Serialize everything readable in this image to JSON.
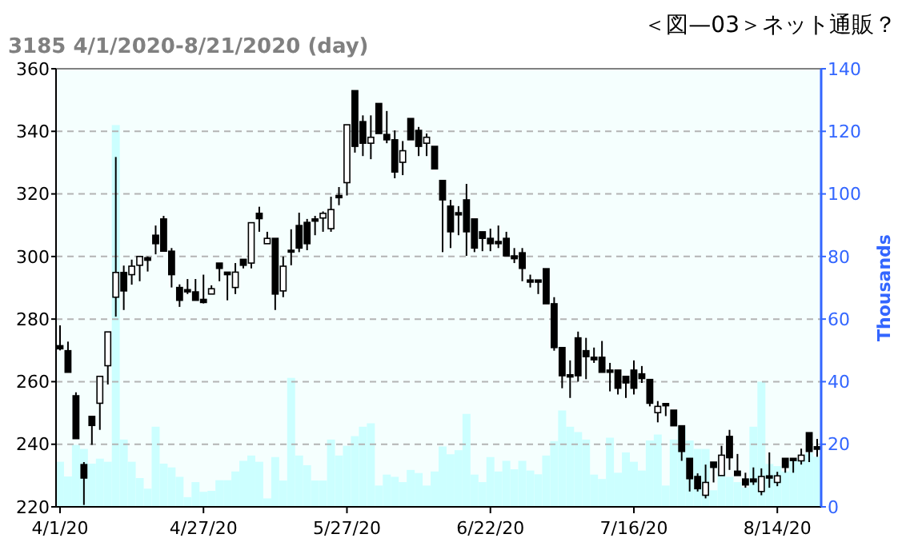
{
  "chart_data": {
    "type": "candlestick",
    "title": "3185 4/1/2020-8/21/2020 (day)",
    "annotations": [
      "＜図—03＞ネット通販？"
    ],
    "y2label": "Thousands",
    "categories": [
      "4/1/20",
      null,
      null,
      null,
      null,
      null,
      null,
      null,
      null,
      null,
      null,
      null,
      null,
      null,
      null,
      null,
      null,
      null,
      "4/27/20",
      null,
      null,
      null,
      null,
      null,
      null,
      null,
      null,
      null,
      null,
      null,
      null,
      null,
      null,
      null,
      null,
      null,
      "5/27/20",
      null,
      null,
      null,
      null,
      null,
      null,
      null,
      null,
      null,
      null,
      null,
      null,
      null,
      null,
      null,
      null,
      null,
      "6/22/20",
      null,
      null,
      null,
      null,
      null,
      null,
      null,
      null,
      null,
      null,
      null,
      null,
      null,
      null,
      null,
      null,
      null,
      "7/16/20",
      null,
      null,
      null,
      null,
      null,
      null,
      null,
      null,
      null,
      null,
      null,
      null,
      null,
      null,
      null,
      null,
      null,
      "8/14/20",
      null,
      null,
      null,
      null,
      null
    ],
    "ohlc": [
      [
        271.5,
        278,
        270,
        270.5
      ],
      [
        269.9,
        272.8,
        263,
        263
      ],
      [
        255.5,
        256.6,
        241.8,
        241.8
      ],
      [
        233.5,
        234.3,
        220.6,
        229.2
      ],
      [
        248.9,
        249,
        239.8,
        246
      ],
      [
        253.1,
        261.7,
        244.6,
        261.7
      ],
      [
        265.1,
        275.9,
        259.1,
        275.9
      ],
      [
        287,
        331.8,
        280.8,
        294.9
      ],
      [
        294.9,
        297.1,
        282.9,
        289
      ],
      [
        294.2,
        299,
        291,
        296.9
      ],
      [
        297.2,
        300,
        292.1,
        300
      ],
      [
        299.6,
        300,
        295.2,
        298.8
      ],
      [
        306.8,
        309.9,
        300.7,
        304.1
      ],
      [
        312,
        313,
        301.7,
        301.7
      ],
      [
        301.7,
        302.7,
        290.1,
        294.2
      ],
      [
        290.1,
        291.1,
        283.9,
        286
      ],
      [
        289.4,
        292.8,
        288,
        288.7
      ],
      [
        288.7,
        292.8,
        286,
        286
      ],
      [
        286.3,
        294.2,
        285,
        285.3
      ],
      [
        288,
        290.8,
        288,
        289.7
      ],
      [
        297.9,
        297.9,
        292.1,
        296.2
      ],
      [
        295,
        295,
        286,
        294.2
      ],
      [
        290.1,
        297.9,
        288,
        295
      ],
      [
        299.1,
        299.1,
        296.2,
        297.2
      ],
      [
        297.9,
        310.8,
        296.2,
        310.8
      ],
      [
        313.8,
        315.9,
        307.9,
        312.1
      ],
      [
        304.1,
        307.9,
        304.1,
        305.8
      ],
      [
        305.8,
        305.8,
        282.9,
        288
      ],
      [
        289,
        300,
        287,
        296.9
      ],
      [
        302,
        308.7,
        297.2,
        301.4
      ],
      [
        309.9,
        314,
        301.4,
        302.7
      ],
      [
        310.9,
        312,
        302,
        304.1
      ],
      [
        312,
        313,
        306.8,
        311.3
      ],
      [
        312.3,
        314.4,
        307.9,
        313.8
      ],
      [
        308.9,
        319.1,
        307.9,
        315
      ],
      [
        319.5,
        322.2,
        316.4,
        318.8
      ],
      [
        323.6,
        342.1,
        319.5,
        342.1
      ],
      [
        353,
        353,
        333.2,
        335.2
      ],
      [
        343.1,
        345.1,
        332.1,
        336.2
      ],
      [
        336.2,
        345.1,
        331.1,
        338.1
      ],
      [
        348.9,
        348.9,
        339.3,
        339.3
      ],
      [
        339,
        346.5,
        336.2,
        337.3
      ],
      [
        337.3,
        340.3,
        325,
        327
      ],
      [
        330.1,
        336.9,
        326,
        333.8
      ],
      [
        344.1,
        344.1,
        337.3,
        337.3
      ],
      [
        340.3,
        341.4,
        332.1,
        335.2
      ],
      [
        336.2,
        339.3,
        332.1,
        338.1
      ],
      [
        335.2,
        335.2,
        328,
        328
      ],
      [
        324.3,
        324.3,
        301.4,
        318.1
      ],
      [
        316.1,
        318.1,
        302.7,
        307.9
      ],
      [
        314,
        316.1,
        306.8,
        313.3
      ],
      [
        318.1,
        323.2,
        300.2,
        307.9
      ],
      [
        312,
        312,
        301.4,
        302.7
      ],
      [
        307.9,
        307.9,
        301.7,
        305.8
      ],
      [
        305.8,
        308.9,
        301.7,
        304.1
      ],
      [
        304.8,
        309.9,
        302.7,
        304.1
      ],
      [
        305.8,
        307.9,
        300.2,
        300.2
      ],
      [
        300.2,
        302.7,
        297.9,
        299.3
      ],
      [
        301.2,
        302.7,
        292.1,
        296.2
      ],
      [
        292.5,
        294.2,
        290.1,
        291.8
      ],
      [
        292.5,
        292.5,
        288,
        291.8
      ],
      [
        296.1,
        296.1,
        284.9,
        284.9
      ],
      [
        284.9,
        287,
        269.9,
        270.9
      ],
      [
        270.9,
        270.9,
        257.9,
        261.9
      ],
      [
        262.2,
        266.8,
        254.8,
        261.5
      ],
      [
        274,
        276,
        260,
        261.9
      ],
      [
        269.9,
        274,
        260.8,
        268
      ],
      [
        267.8,
        270.9,
        266,
        267
      ],
      [
        267.8,
        273,
        263,
        263
      ],
      [
        263.7,
        266,
        256.9,
        263
      ],
      [
        263.7,
        263.7,
        255.9,
        257.9
      ],
      [
        261.7,
        261.7,
        254.8,
        259.6
      ],
      [
        263.7,
        266.8,
        255.9,
        257.9
      ],
      [
        262.5,
        265,
        259.6,
        261
      ],
      [
        260.7,
        260.7,
        252.1,
        253.1
      ],
      [
        250.1,
        253.8,
        247,
        252.1
      ],
      [
        253,
        253,
        249,
        252.3
      ],
      [
        250.9,
        250.9,
        245.9,
        245.9
      ],
      [
        245.9,
        245.9,
        234.7,
        237.7
      ],
      [
        235.5,
        235.5,
        224.9,
        229
      ],
      [
        229.7,
        230.7,
        224.9,
        225.8
      ],
      [
        223.7,
        233.5,
        222.7,
        227.8
      ],
      [
        234.3,
        234.3,
        227.8,
        232.6
      ],
      [
        230,
        239.5,
        230,
        236.5
      ],
      [
        242.5,
        244.6,
        231.8,
        235.7
      ],
      [
        231.4,
        236.9,
        230,
        230
      ],
      [
        228.9,
        230.9,
        226.1,
        227
      ],
      [
        228.9,
        232.6,
        227,
        228
      ],
      [
        224.9,
        232.3,
        223.7,
        229.7
      ],
      [
        229.9,
        237.4,
        226.1,
        229.2
      ],
      [
        227.8,
        231.2,
        226.6,
        229.9
      ],
      [
        235.5,
        235.5,
        230.9,
        232.6
      ],
      [
        235.5,
        235.5,
        230.9,
        234.8
      ],
      [
        234.7,
        238.6,
        233.5,
        236.5
      ],
      [
        243.7,
        243.7,
        234.3,
        237.7
      ],
      [
        239.2,
        241.7,
        236,
        238.4
      ]
    ],
    "series": [
      {
        "type": "bar",
        "axis": "y2",
        "color": "#ccffff",
        "values": [
          14.4,
          9.7,
          19.8,
          18.5,
          13.8,
          15.4,
          14.4,
          122,
          21.5,
          14.4,
          9.2,
          5.8,
          25.6,
          13.8,
          12.6,
          9.6,
          3.1,
          7.9,
          4.8,
          5.1,
          8.5,
          8.5,
          11.3,
          14.7,
          16.4,
          14.4,
          2.7,
          15.9,
          8.4,
          41.2,
          16.4,
          13.3,
          8.4,
          8.4,
          21.5,
          16.4,
          19.5,
          22.6,
          25.6,
          26.7,
          6.8,
          10.3,
          9.6,
          7.9,
          11.8,
          10.8,
          6.8,
          11.3,
          19.3,
          16.8,
          18.1,
          29.7,
          10.3,
          7.9,
          15.9,
          11.3,
          14.7,
          12,
          14.7,
          11.6,
          10.4,
          16.4,
          21,
          30.8,
          25.6,
          23.9,
          21.5,
          10.3,
          8.9,
          22.1,
          10.9,
          17.4,
          14.4,
          11.6,
          21.2,
          23.1,
          6.8,
          21.5,
          25.6,
          21.2,
          18.5,
          18.5,
          5.3,
          11.3,
          9.6,
          7.9,
          6.2,
          25.6,
          40,
          13.7,
          13,
          11.3,
          14.7,
          15.6,
          17.3,
          16
        ]
      }
    ],
    "ylim": [
      220,
      360
    ],
    "yticks": [
      220,
      240,
      260,
      280,
      300,
      320,
      340,
      360
    ],
    "y2lim": [
      0,
      140
    ],
    "y2ticks": [
      0,
      20,
      40,
      60,
      80,
      100,
      120,
      140
    ],
    "grid": "y"
  }
}
